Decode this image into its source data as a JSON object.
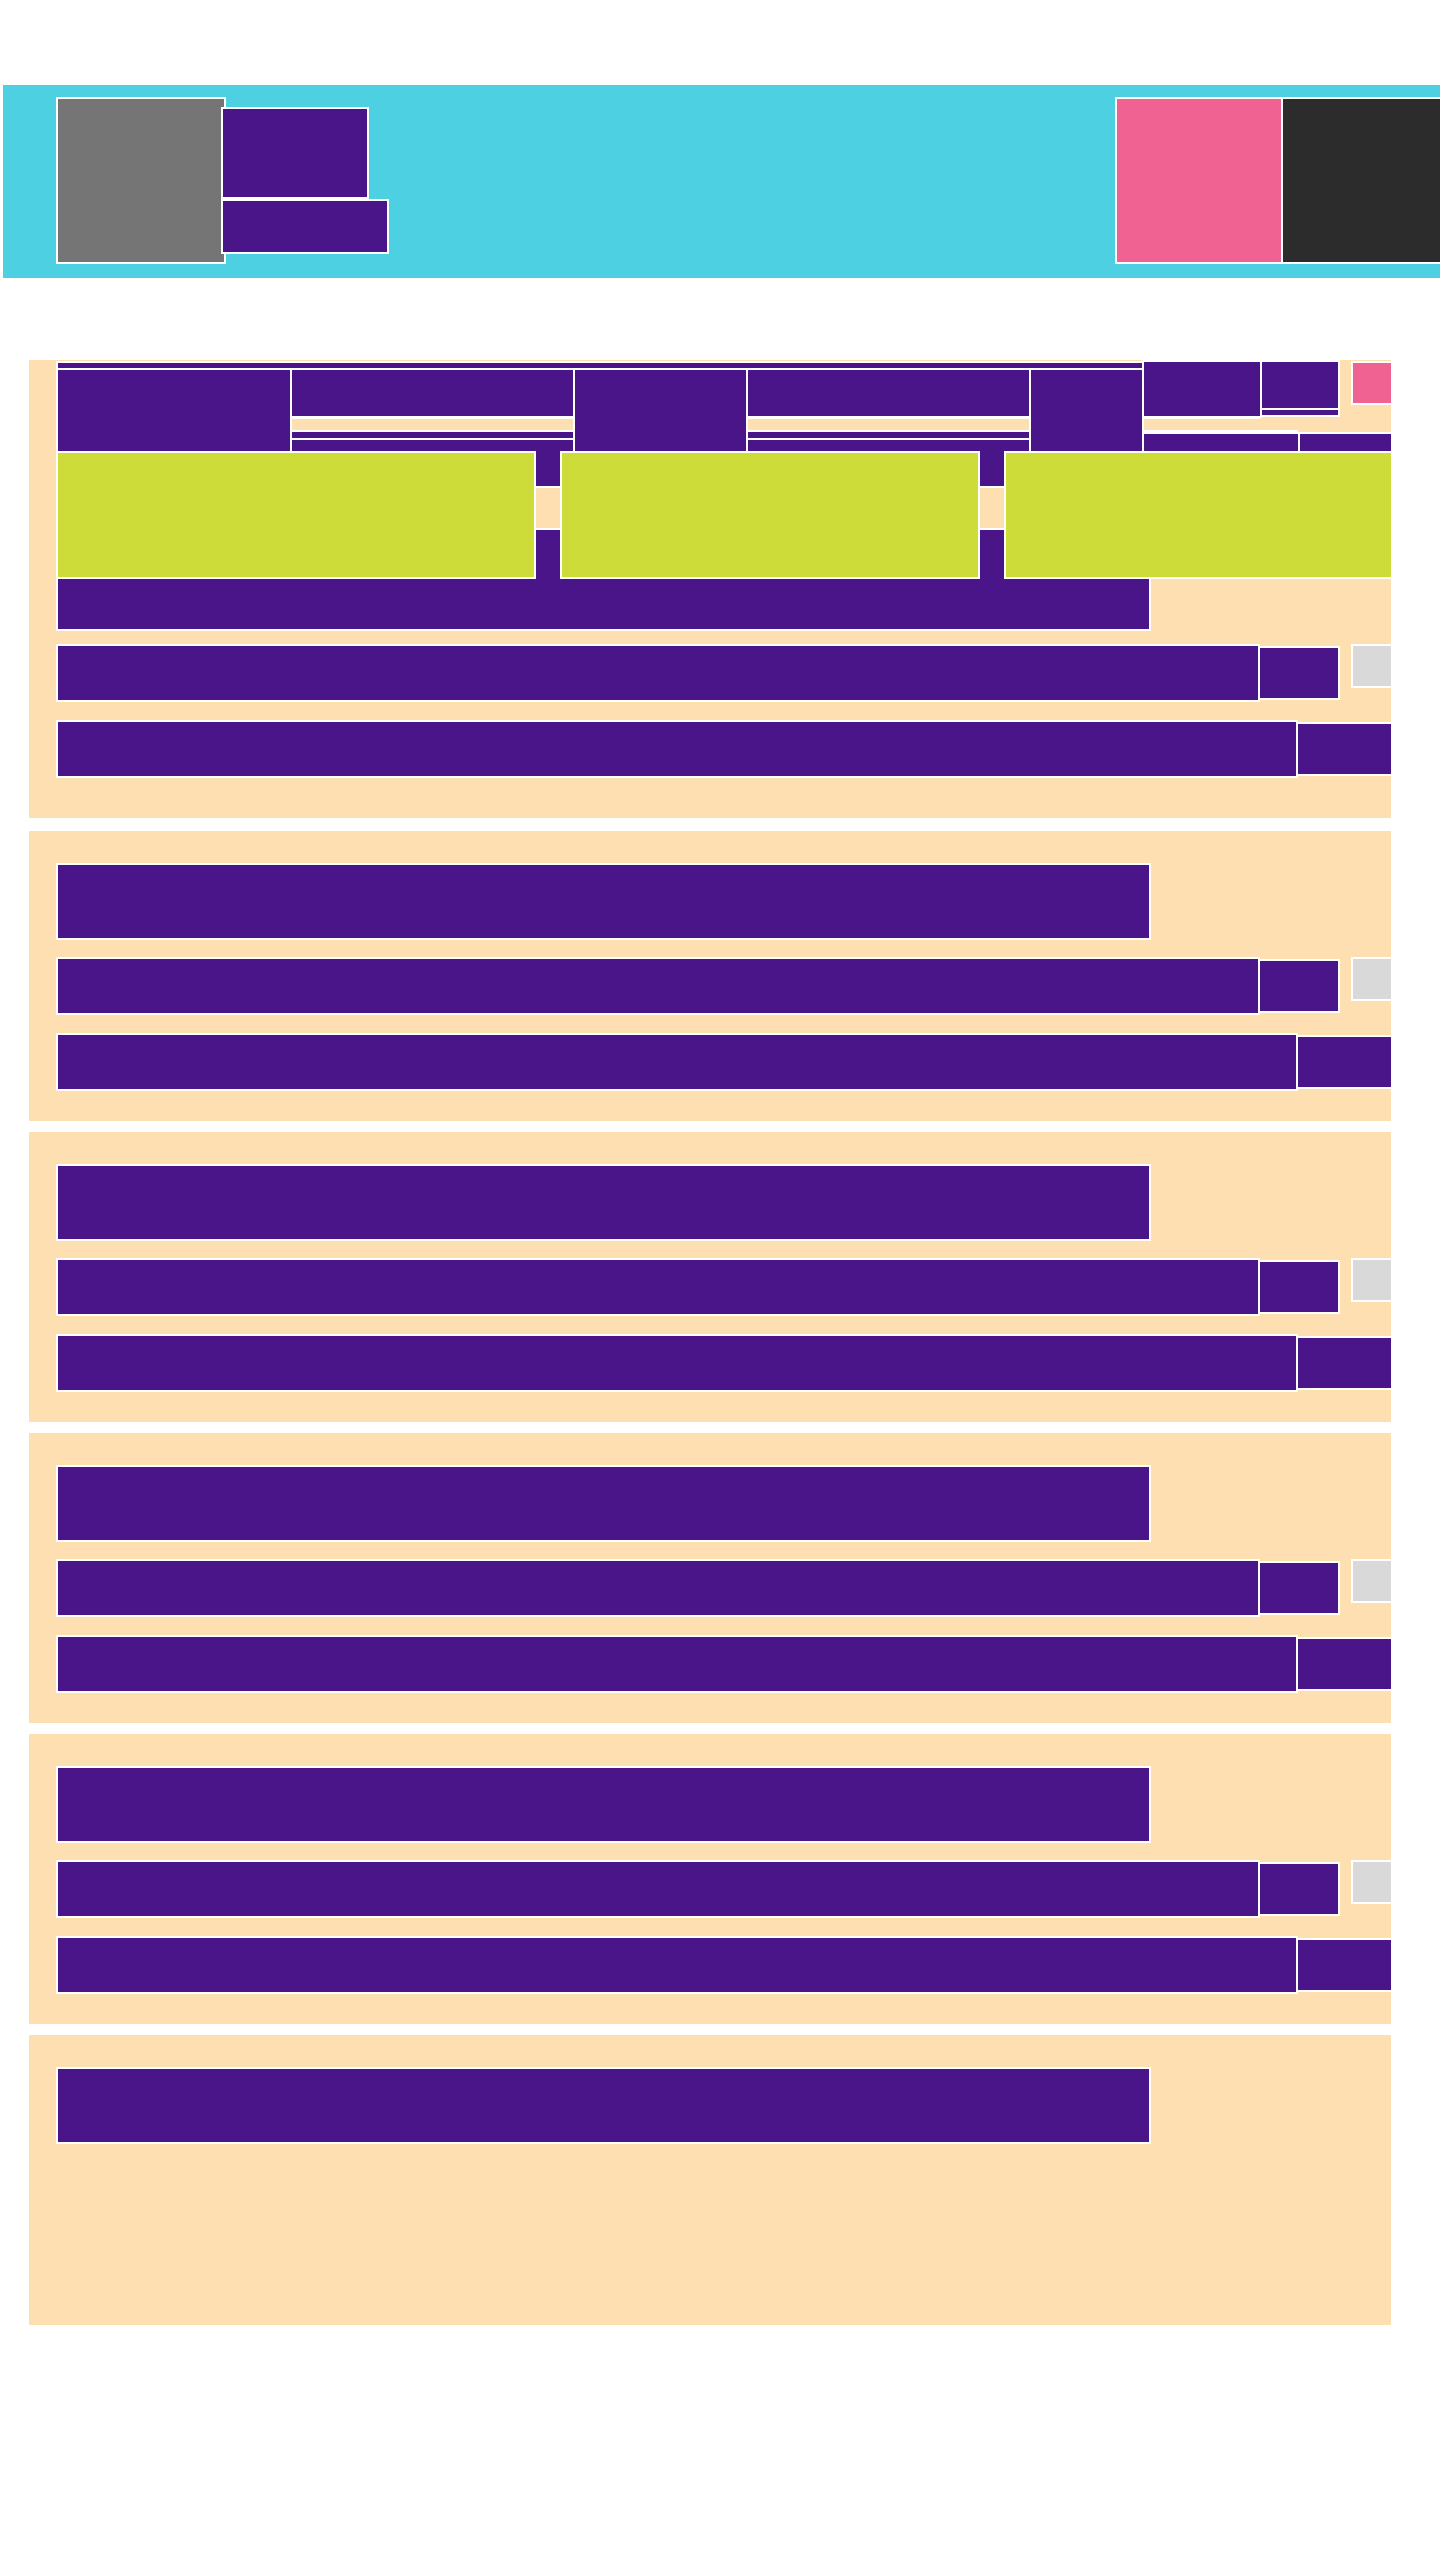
{
  "colors": {
    "header_bg": "#4dd0e1",
    "card_bg": "#fddfb1",
    "block": "#4a1589",
    "action": "#cddc39",
    "status_active": "#f06292",
    "status_idle": "#d9d9d9",
    "avatar": "#757575",
    "dark_button": "#2c2c2c"
  },
  "header": {
    "title": "",
    "subtitle": "",
    "avatar_icon": "user-avatar-icon",
    "primary_action_icon": "pink-action-icon",
    "secondary_action_icon": "dark-action-icon"
  },
  "toolbar": {
    "button_1": "",
    "button_2": "",
    "button_3": ""
  },
  "items": [
    {
      "title": "",
      "line_1": "",
      "line_1_meta": "",
      "line_2": "",
      "line_2_meta": "",
      "status": "idle"
    },
    {
      "title": "",
      "line_1": "",
      "line_1_meta": "",
      "line_2": "",
      "line_2_meta": "",
      "status": "idle"
    },
    {
      "title": "",
      "line_1": "",
      "line_1_meta": "",
      "line_2": "",
      "line_2_meta": "",
      "status": "idle"
    },
    {
      "title": "",
      "line_1": "",
      "line_1_meta": "",
      "line_2": "",
      "line_2_meta": "",
      "status": "idle"
    },
    {
      "title": "",
      "line_1": "",
      "line_1_meta": "",
      "line_2": "",
      "line_2_meta": "",
      "status": "idle"
    },
    {
      "title": "",
      "line_1": "",
      "line_1_meta": "",
      "line_2": "",
      "line_2_meta": "",
      "status": "idle"
    },
    {
      "title": "",
      "status": "idle"
    }
  ]
}
